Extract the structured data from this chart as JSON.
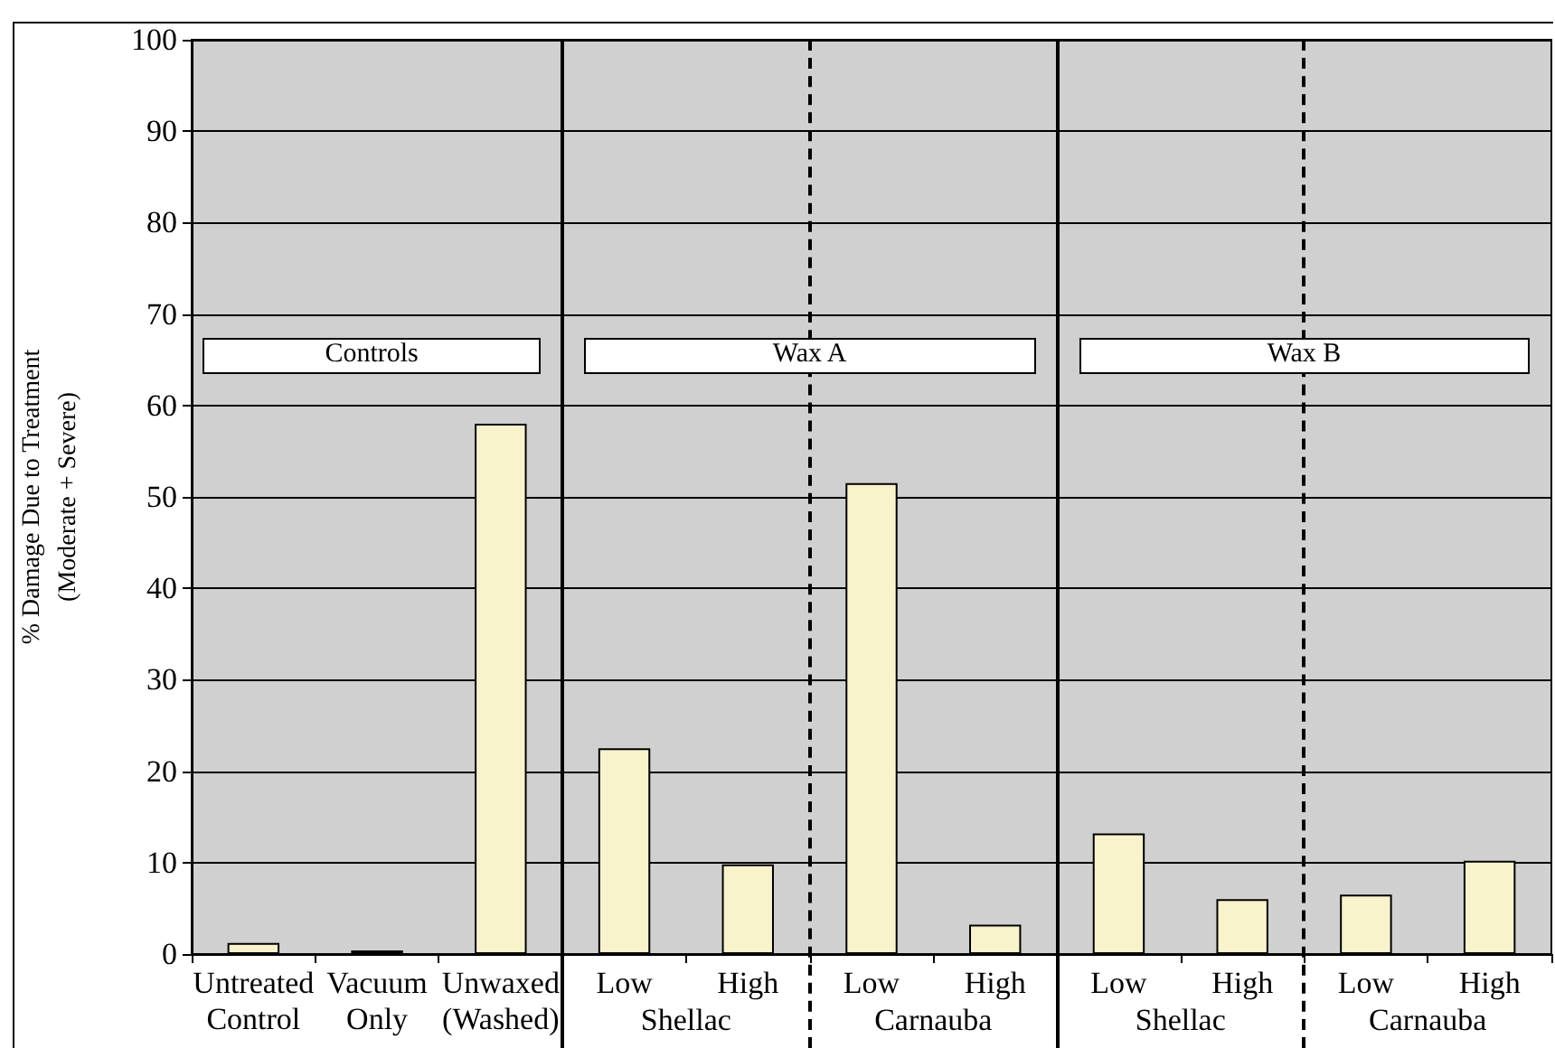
{
  "chart_data": {
    "type": "bar",
    "ylabel": "% Damage Due to Treatment\n(Moderate + Severe)",
    "categories": [
      "Untreated\nControl",
      "Vacuum\nOnly",
      "Unwaxed\n(Washed)",
      "Low",
      "High",
      "Low",
      "High",
      "Low",
      "High",
      "Low",
      "High"
    ],
    "values": [
      1.2,
      0.4,
      58,
      22.5,
      9.8,
      51.5,
      3.2,
      13.2,
      6,
      6.5,
      10.2
    ],
    "color": "#f8f3cc",
    "ylim": [
      0,
      100
    ],
    "yticks": [
      0,
      10,
      20,
      30,
      40,
      50,
      60,
      70,
      80,
      90,
      100
    ],
    "grid": "y",
    "annotations": [
      "Controls",
      "Wax A",
      "Wax B",
      "Shellac",
      "Carnauba",
      "Shellac",
      "Carnauba"
    ]
  }
}
